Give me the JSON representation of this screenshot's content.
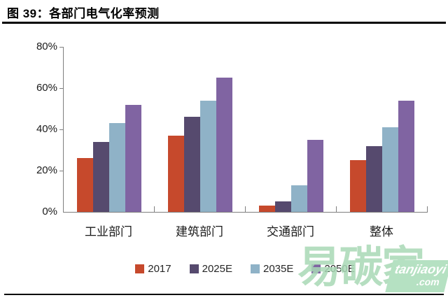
{
  "title": "图 39：各部门电气化率预测",
  "chart_data": {
    "type": "bar",
    "title": "各部门电气化率预测",
    "categories": [
      "工业部门",
      "建筑部门",
      "交通部门",
      "整体"
    ],
    "series": [
      {
        "name": "2017",
        "color": "#c6492c",
        "values": [
          26,
          37,
          3,
          25
        ]
      },
      {
        "name": "2025E",
        "color": "#564a6e",
        "values": [
          34,
          46,
          5,
          32
        ]
      },
      {
        "name": "2035E",
        "color": "#8fb2c7",
        "values": [
          43,
          54,
          13,
          41
        ]
      },
      {
        "name": "2050E",
        "color": "#8064a2",
        "values": [
          52,
          65,
          35,
          54
        ]
      }
    ],
    "xlabel": "",
    "ylabel": "",
    "ylim": [
      0,
      80
    ],
    "ytick_step": 20,
    "yticks": [
      "0%",
      "20%",
      "40%",
      "60%",
      "80%"
    ],
    "grid": false,
    "legend_position": "bottom"
  },
  "axis_colors": {
    "line": "#7f7f7f",
    "tick_label": "#1a1a1a"
  },
  "watermark": {
    "text": "易碳家",
    "badge_line1": "tanjiaoyi",
    "badge_line2": ".com",
    "color": "#a9d9b6"
  }
}
